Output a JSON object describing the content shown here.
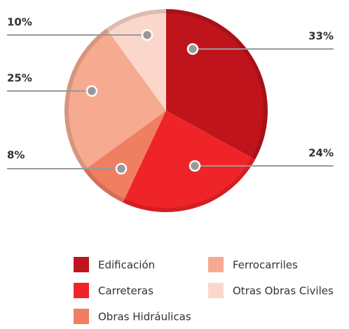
{
  "chart_data": {
    "type": "pie",
    "categories": [
      "Edificación",
      "Carreteras",
      "Obras Hidráulicas",
      "Ferrocarriles",
      "Otras Obras Civiles"
    ],
    "values": [
      33,
      24,
      8,
      25,
      10
    ],
    "value_labels": [
      "33%",
      "24%",
      "8%",
      "25%",
      "10%"
    ],
    "colors": [
      "#c0141d",
      "#ee2429",
      "#f07f62",
      "#f6aa8f",
      "#fbd7cb"
    ],
    "legend": "bottom"
  }
}
